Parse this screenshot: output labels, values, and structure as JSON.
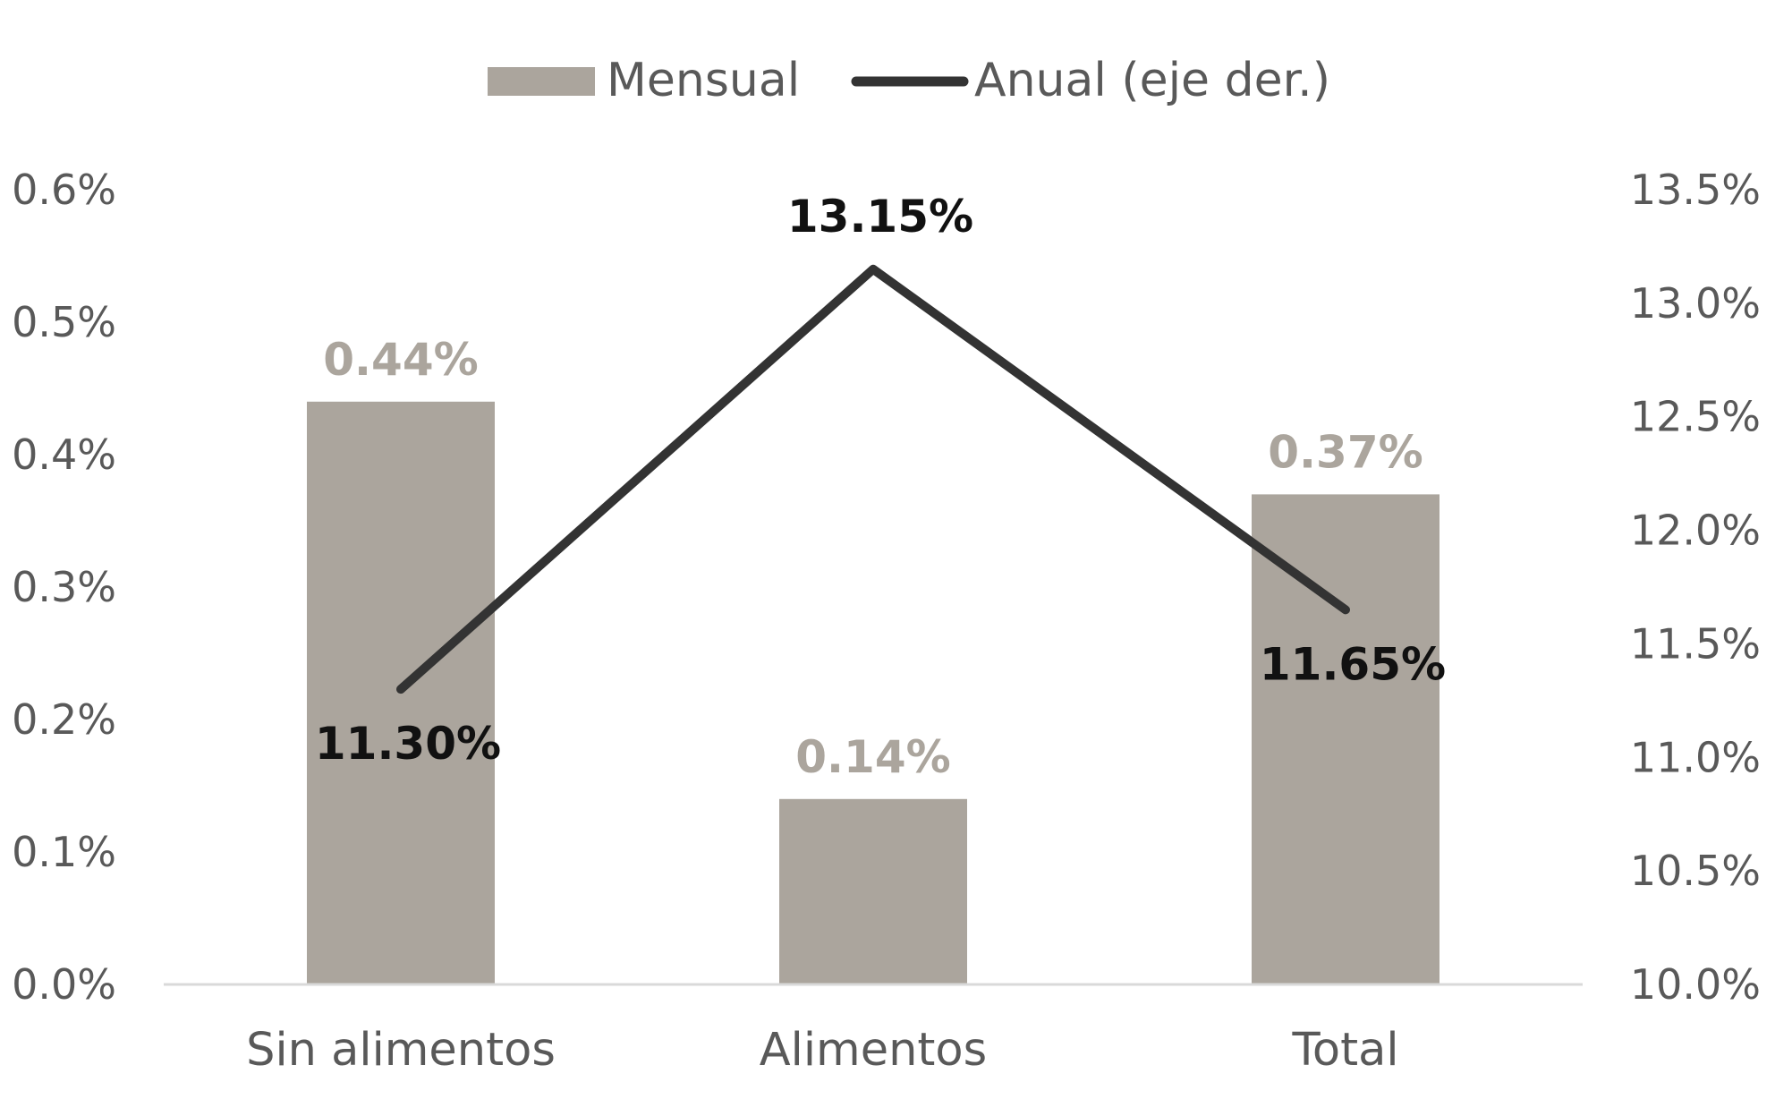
{
  "chart_data": {
    "type": "bar+line",
    "categories": [
      "Sin alimentos",
      "Alimentos",
      "Total"
    ],
    "series": [
      {
        "name": "Mensual",
        "type": "bar",
        "axis": "left",
        "values": [
          0.44,
          0.14,
          0.37
        ],
        "labels": [
          "0.44%",
          "0.14%",
          "0.37%"
        ],
        "color": "#aba59d"
      },
      {
        "name": "Anual (eje der.)",
        "type": "line",
        "axis": "right",
        "values": [
          11.3,
          13.15,
          11.65
        ],
        "labels": [
          "11.30%",
          "13.15%",
          "11.65%"
        ],
        "color": "#333333"
      }
    ],
    "y_left": {
      "lim": [
        0,
        0.6
      ],
      "ticks": [
        0.0,
        0.1,
        0.2,
        0.3,
        0.4,
        0.5,
        0.6
      ],
      "tick_labels": [
        "0.0%",
        "0.1%",
        "0.2%",
        "0.3%",
        "0.4%",
        "0.5%",
        "0.6%"
      ]
    },
    "y_right": {
      "lim": [
        10.0,
        13.5
      ],
      "ticks": [
        10.0,
        10.5,
        11.0,
        11.5,
        12.0,
        12.5,
        13.0,
        13.5
      ],
      "tick_labels": [
        "10.0%",
        "10.5%",
        "11.0%",
        "11.5%",
        "12.0%",
        "12.5%",
        "13.0%",
        "13.5%"
      ]
    },
    "legend_position": "top-center",
    "grid": false,
    "baseline_color": "#d9d9d9"
  }
}
